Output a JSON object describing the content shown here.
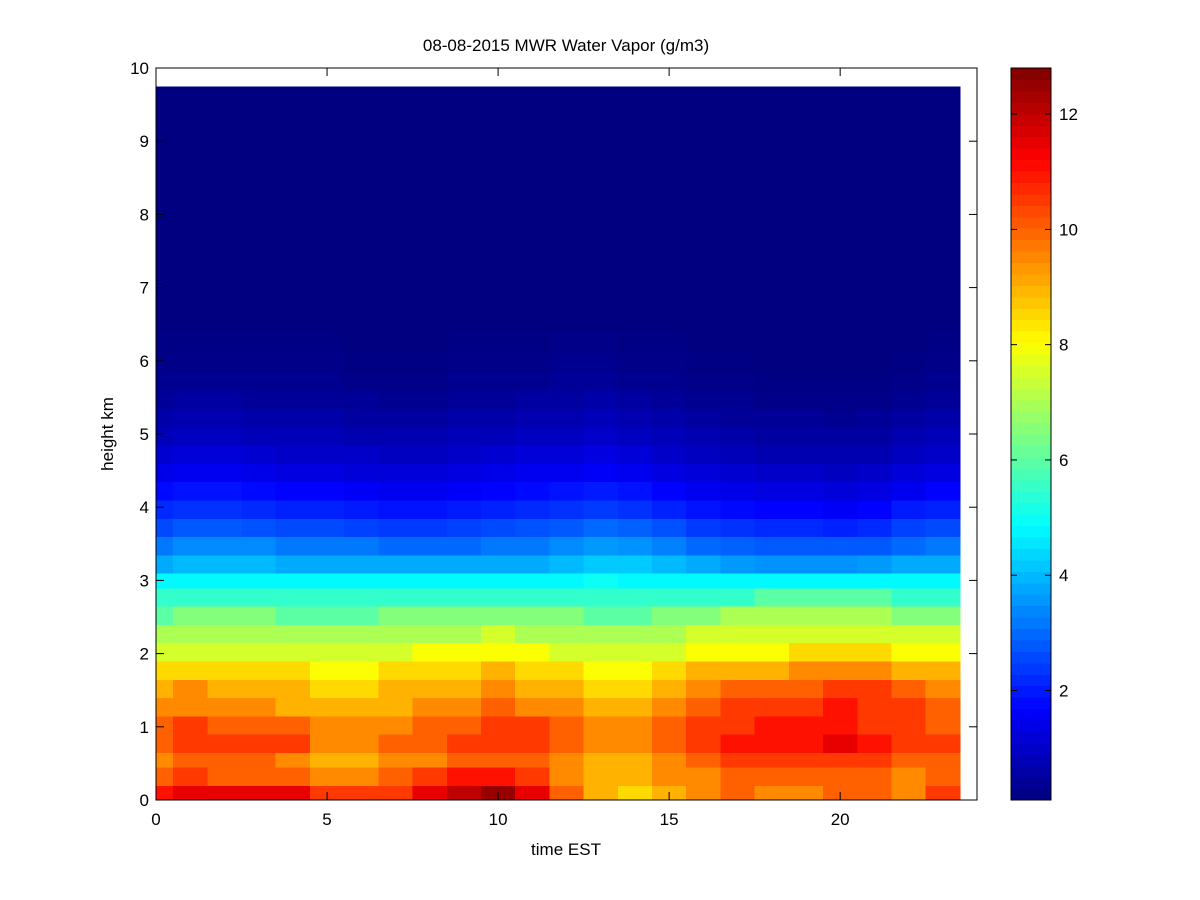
{
  "chart_data": {
    "type": "heatmap",
    "title": "08-08-2015 MWR Water Vapor (g/m3)",
    "xlabel": "time EST",
    "ylabel": "height km",
    "xlim": [
      0,
      24
    ],
    "ylim": [
      0,
      10
    ],
    "x_ticks": [
      "0",
      "5",
      "10",
      "15",
      "20"
    ],
    "y_ticks": [
      "0",
      "1",
      "2",
      "3",
      "4",
      "5",
      "6",
      "7",
      "8",
      "9",
      "10"
    ],
    "colorbar": {
      "colormap": "jet",
      "range": [
        0.1,
        12.8
      ],
      "ticks": [
        "2",
        "4",
        "6",
        "8",
        "10",
        "12"
      ]
    },
    "x_edges": [
      0,
      0.5,
      1.5,
      2.5,
      3.5,
      4.5,
      5.5,
      6.5,
      7.5,
      8.5,
      9.5,
      10.5,
      11.5,
      12.5,
      13.5,
      14.5,
      15.5,
      16.5,
      17.5,
      18.5,
      19.5,
      20.5,
      21.5,
      22.5,
      23.5
    ],
    "y_edges": [
      0,
      0.2,
      0.45,
      0.65,
      0.9,
      1.15,
      1.4,
      1.65,
      1.9,
      2.15,
      2.4,
      2.65,
      2.9,
      3.1,
      3.35,
      3.6,
      3.85,
      4.1,
      4.35,
      4.6,
      4.85,
      5.1,
      5.35,
      5.6,
      5.85,
      6.1,
      6.4,
      6.7,
      7.0,
      7.5,
      8.0,
      8.5,
      9.0,
      9.75
    ],
    "values": [
      [
        11.0,
        11.5,
        11.5,
        11.5,
        11.5,
        10.5,
        10.5,
        10.5,
        11.5,
        12.0,
        12.5,
        11.5,
        10.0,
        9.0,
        8.5,
        9.0,
        9.5,
        10.0,
        9.5,
        9.5,
        10.0,
        10.0,
        9.5,
        10.5
      ],
      [
        10.0,
        10.5,
        10.0,
        10.0,
        10.0,
        9.5,
        9.5,
        10.0,
        10.5,
        11.0,
        11.0,
        10.5,
        9.5,
        9.0,
        9.0,
        9.5,
        9.5,
        10.0,
        10.0,
        10.0,
        10.0,
        10.0,
        9.5,
        10.0
      ],
      [
        9.5,
        10.0,
        10.0,
        10.0,
        9.5,
        9.0,
        9.0,
        9.5,
        9.5,
        10.0,
        10.0,
        10.0,
        9.5,
        9.0,
        9.0,
        9.5,
        10.0,
        10.5,
        10.5,
        10.5,
        10.5,
        10.5,
        10.0,
        10.0
      ],
      [
        10.0,
        10.5,
        10.5,
        10.5,
        10.5,
        9.5,
        9.5,
        10.0,
        10.0,
        10.5,
        10.5,
        10.5,
        10.0,
        9.5,
        9.5,
        10.0,
        10.5,
        11.0,
        11.0,
        11.0,
        11.5,
        11.0,
        10.5,
        10.5
      ],
      [
        10.0,
        10.5,
        10.0,
        10.0,
        10.0,
        9.5,
        9.5,
        9.5,
        10.0,
        10.0,
        10.5,
        10.5,
        10.0,
        9.5,
        9.5,
        10.0,
        10.5,
        10.5,
        11.0,
        11.0,
        11.0,
        10.5,
        10.5,
        10.0
      ],
      [
        9.5,
        9.5,
        9.5,
        9.5,
        9.0,
        9.0,
        9.0,
        9.0,
        9.5,
        9.5,
        10.0,
        9.5,
        9.5,
        9.0,
        9.0,
        9.5,
        10.0,
        10.5,
        10.5,
        10.5,
        11.0,
        10.5,
        10.5,
        10.0
      ],
      [
        9.0,
        9.5,
        9.0,
        9.0,
        9.0,
        8.5,
        8.5,
        9.0,
        9.0,
        9.0,
        9.5,
        9.0,
        9.0,
        8.5,
        8.5,
        9.0,
        9.5,
        10.0,
        10.0,
        10.0,
        10.5,
        10.5,
        10.0,
        9.5
      ],
      [
        8.5,
        8.5,
        8.5,
        8.5,
        8.5,
        8.0,
        8.0,
        8.5,
        8.5,
        8.5,
        9.0,
        8.5,
        8.5,
        8.0,
        8.0,
        8.5,
        9.0,
        9.0,
        9.0,
        9.5,
        9.5,
        9.5,
        9.0,
        9.0
      ],
      [
        7.5,
        7.5,
        7.5,
        7.5,
        7.5,
        7.5,
        7.5,
        7.5,
        8.0,
        8.0,
        8.0,
        8.0,
        7.5,
        7.5,
        7.5,
        7.5,
        8.0,
        8.0,
        8.0,
        8.5,
        8.5,
        8.5,
        8.0,
        8.0
      ],
      [
        7.0,
        7.0,
        7.0,
        7.0,
        7.0,
        7.0,
        7.0,
        7.0,
        7.0,
        7.0,
        7.5,
        7.0,
        7.0,
        7.0,
        7.0,
        7.0,
        7.5,
        7.5,
        7.5,
        7.5,
        7.5,
        7.5,
        7.5,
        7.5
      ],
      [
        6.0,
        6.5,
        6.5,
        6.5,
        6.0,
        6.0,
        6.0,
        6.5,
        6.5,
        6.5,
        6.5,
        6.5,
        6.5,
        6.0,
        6.0,
        6.5,
        6.5,
        7.0,
        7.0,
        7.0,
        7.0,
        7.0,
        6.5,
        6.5
      ],
      [
        5.5,
        5.5,
        5.5,
        5.5,
        5.5,
        5.5,
        5.5,
        5.5,
        5.5,
        5.5,
        5.5,
        5.5,
        5.5,
        5.5,
        5.5,
        5.5,
        5.5,
        5.5,
        6.0,
        6.0,
        6.0,
        6.0,
        5.5,
        5.5
      ],
      [
        4.8,
        4.8,
        4.8,
        4.8,
        4.8,
        4.8,
        4.8,
        4.8,
        4.8,
        4.8,
        4.8,
        4.8,
        4.8,
        5.0,
        4.8,
        4.8,
        4.8,
        4.8,
        4.8,
        4.8,
        4.8,
        4.8,
        4.8,
        4.8
      ],
      [
        3.8,
        4.0,
        4.0,
        4.0,
        3.8,
        3.8,
        3.8,
        3.8,
        3.8,
        3.8,
        3.8,
        3.8,
        4.0,
        4.2,
        4.2,
        4.0,
        3.8,
        3.6,
        3.5,
        3.5,
        3.5,
        3.6,
        3.8,
        3.8
      ],
      [
        3.2,
        3.4,
        3.4,
        3.4,
        3.2,
        3.2,
        3.2,
        3.0,
        3.0,
        3.0,
        3.2,
        3.2,
        3.4,
        3.6,
        3.5,
        3.3,
        3.0,
        2.9,
        2.8,
        2.8,
        2.8,
        2.8,
        3.0,
        3.2
      ],
      [
        2.6,
        2.8,
        2.8,
        2.7,
        2.6,
        2.6,
        2.5,
        2.4,
        2.4,
        2.5,
        2.6,
        2.7,
        2.8,
        3.0,
        2.9,
        2.7,
        2.4,
        2.3,
        2.2,
        2.2,
        2.1,
        2.2,
        2.5,
        2.6
      ],
      [
        2.2,
        2.3,
        2.3,
        2.2,
        2.1,
        2.1,
        2.0,
        1.9,
        1.9,
        2.0,
        2.1,
        2.2,
        2.3,
        2.4,
        2.3,
        2.1,
        1.9,
        1.8,
        1.7,
        1.7,
        1.6,
        1.7,
        2.0,
        2.1
      ],
      [
        1.8,
        1.9,
        1.9,
        1.8,
        1.7,
        1.7,
        1.6,
        1.5,
        1.5,
        1.6,
        1.7,
        1.8,
        1.9,
        2.0,
        1.9,
        1.7,
        1.5,
        1.4,
        1.3,
        1.3,
        1.2,
        1.3,
        1.5,
        1.7
      ],
      [
        1.4,
        1.5,
        1.5,
        1.4,
        1.3,
        1.3,
        1.2,
        1.2,
        1.2,
        1.3,
        1.4,
        1.5,
        1.5,
        1.6,
        1.5,
        1.3,
        1.2,
        1.1,
        1.0,
        1.0,
        0.9,
        1.0,
        1.2,
        1.3
      ],
      [
        1.1,
        1.2,
        1.2,
        1.1,
        1.0,
        1.0,
        1.0,
        0.9,
        0.9,
        1.0,
        1.1,
        1.2,
        1.2,
        1.3,
        1.2,
        1.0,
        0.9,
        0.8,
        0.7,
        0.7,
        0.7,
        0.7,
        0.9,
        1.0
      ],
      [
        0.8,
        0.9,
        0.9,
        0.8,
        0.8,
        0.8,
        0.7,
        0.7,
        0.7,
        0.8,
        0.8,
        0.9,
        0.9,
        1.0,
        0.9,
        0.8,
        0.7,
        0.6,
        0.5,
        0.5,
        0.5,
        0.5,
        0.7,
        0.8
      ],
      [
        0.6,
        0.7,
        0.7,
        0.6,
        0.6,
        0.6,
        0.5,
        0.5,
        0.5,
        0.6,
        0.6,
        0.7,
        0.7,
        0.8,
        0.7,
        0.6,
        0.5,
        0.4,
        0.4,
        0.4,
        0.3,
        0.4,
        0.5,
        0.6
      ],
      [
        0.4,
        0.5,
        0.5,
        0.4,
        0.4,
        0.4,
        0.4,
        0.3,
        0.3,
        0.4,
        0.4,
        0.5,
        0.5,
        0.6,
        0.5,
        0.4,
        0.3,
        0.3,
        0.2,
        0.2,
        0.2,
        0.2,
        0.3,
        0.4
      ],
      [
        0.3,
        0.3,
        0.3,
        0.3,
        0.3,
        0.3,
        0.2,
        0.2,
        0.2,
        0.3,
        0.3,
        0.3,
        0.4,
        0.4,
        0.3,
        0.3,
        0.2,
        0.2,
        0.15,
        0.15,
        0.15,
        0.15,
        0.2,
        0.3
      ],
      [
        0.2,
        0.2,
        0.2,
        0.2,
        0.2,
        0.2,
        0.15,
        0.15,
        0.15,
        0.2,
        0.2,
        0.2,
        0.3,
        0.3,
        0.2,
        0.2,
        0.15,
        0.15,
        0.1,
        0.1,
        0.1,
        0.1,
        0.15,
        0.2
      ],
      [
        0.15,
        0.15,
        0.15,
        0.15,
        0.15,
        0.15,
        0.1,
        0.1,
        0.1,
        0.15,
        0.15,
        0.15,
        0.2,
        0.2,
        0.15,
        0.15,
        0.1,
        0.1,
        0.1,
        0.1,
        0.1,
        0.1,
        0.1,
        0.15
      ],
      [
        0.1,
        0.1,
        0.1,
        0.1,
        0.1,
        0.1,
        0.1,
        0.1,
        0.1,
        0.1,
        0.1,
        0.1,
        0.1,
        0.1,
        0.1,
        0.1,
        0.1,
        0.1,
        0.1,
        0.1,
        0.1,
        0.1,
        0.1,
        0.1
      ],
      [
        0.1,
        0.1,
        0.1,
        0.1,
        0.1,
        0.1,
        0.1,
        0.1,
        0.1,
        0.1,
        0.1,
        0.1,
        0.1,
        0.1,
        0.1,
        0.1,
        0.1,
        0.1,
        0.1,
        0.1,
        0.1,
        0.1,
        0.1,
        0.1
      ],
      [
        0.1,
        0.1,
        0.1,
        0.1,
        0.1,
        0.1,
        0.1,
        0.1,
        0.1,
        0.1,
        0.1,
        0.1,
        0.1,
        0.1,
        0.1,
        0.1,
        0.1,
        0.1,
        0.1,
        0.1,
        0.1,
        0.1,
        0.1,
        0.1
      ],
      [
        0.1,
        0.1,
        0.1,
        0.1,
        0.1,
        0.1,
        0.1,
        0.1,
        0.1,
        0.1,
        0.1,
        0.1,
        0.1,
        0.1,
        0.1,
        0.1,
        0.1,
        0.1,
        0.1,
        0.1,
        0.1,
        0.1,
        0.1,
        0.1
      ],
      [
        0.1,
        0.1,
        0.1,
        0.1,
        0.1,
        0.1,
        0.1,
        0.1,
        0.1,
        0.1,
        0.1,
        0.1,
        0.1,
        0.1,
        0.1,
        0.1,
        0.1,
        0.1,
        0.1,
        0.1,
        0.1,
        0.1,
        0.1,
        0.1
      ],
      [
        0.1,
        0.1,
        0.1,
        0.1,
        0.1,
        0.1,
        0.1,
        0.1,
        0.1,
        0.1,
        0.1,
        0.1,
        0.1,
        0.1,
        0.1,
        0.1,
        0.1,
        0.1,
        0.1,
        0.1,
        0.1,
        0.1,
        0.1,
        0.1
      ],
      [
        0.1,
        0.1,
        0.1,
        0.1,
        0.1,
        0.1,
        0.1,
        0.1,
        0.1,
        0.1,
        0.1,
        0.1,
        0.1,
        0.1,
        0.1,
        0.1,
        0.1,
        0.1,
        0.1,
        0.1,
        0.1,
        0.1,
        0.1,
        0.1
      ]
    ]
  }
}
